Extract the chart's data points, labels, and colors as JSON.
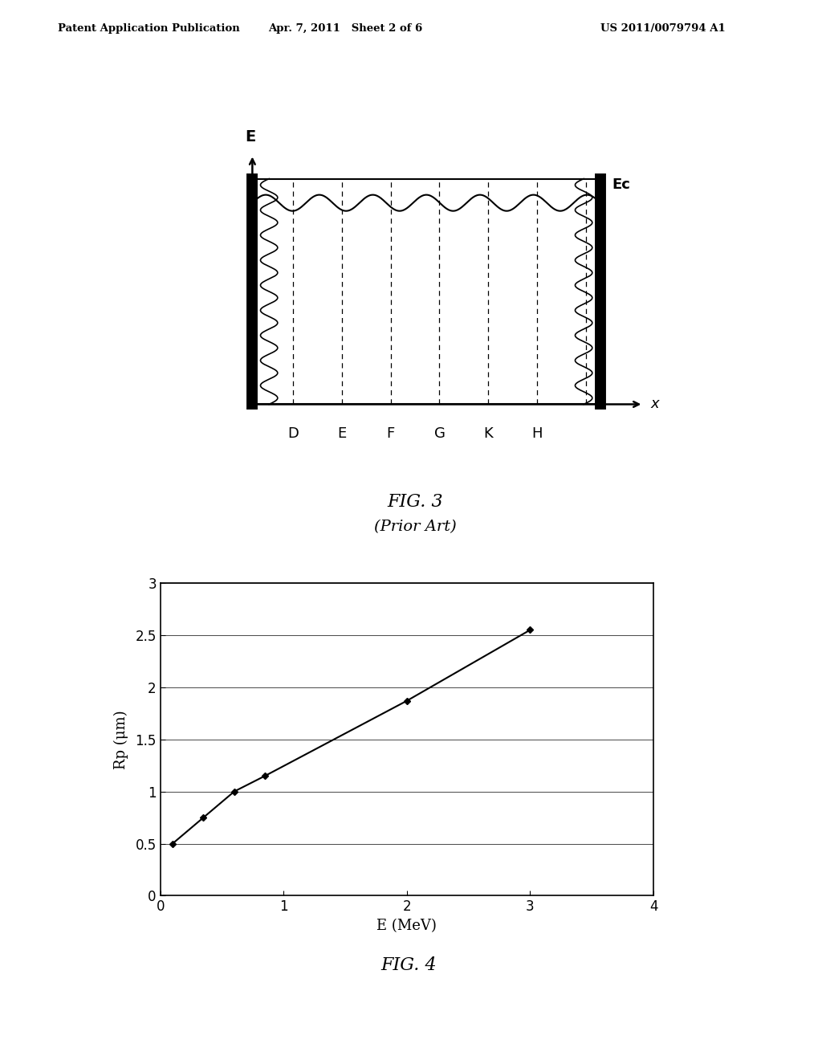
{
  "header_left": "Patent Application Publication",
  "header_mid": "Apr. 7, 2011   Sheet 2 of 6",
  "header_right": "US 2011/0079794 A1",
  "fig3_title": "FIG. 3",
  "fig3_subtitle": "(Prior Art)",
  "fig3_labels": [
    "D",
    "E",
    "F",
    "G",
    "K",
    "H"
  ],
  "fig3_x_label": "x",
  "fig3_y_label": "E",
  "fig3_ec_label": "Ec",
  "fig4_title": "FIG. 4",
  "fig4_xlabel": "E (MeV)",
  "fig4_ylabel": "Rp (μm)",
  "fig4_x": [
    0.1,
    0.35,
    0.6,
    0.85,
    2.0,
    3.0
  ],
  "fig4_y": [
    0.5,
    0.75,
    1.0,
    1.15,
    1.87,
    2.55
  ],
  "fig4_xlim": [
    0,
    4
  ],
  "fig4_ylim": [
    0,
    3
  ],
  "fig4_xticks": [
    0,
    1,
    2,
    3,
    4
  ],
  "fig4_yticks": [
    0,
    0.5,
    1.0,
    1.5,
    2.0,
    2.5,
    3.0
  ],
  "fig4_yticklabels": [
    "0",
    "0.5",
    "1",
    "1.5",
    "2",
    "2.5",
    "3"
  ],
  "background_color": "#ffffff",
  "line_color": "#000000"
}
